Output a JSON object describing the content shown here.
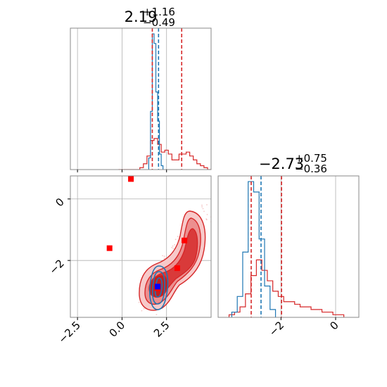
{
  "colors": {
    "red": "#d62728",
    "blue": "#1f77b4",
    "marker_red": "#ff0000",
    "marker_blue": "#0000ff",
    "fill_light": "#f7c9c9",
    "fill_mid": "#ec8f8f",
    "fill_dark": "#d93a3a",
    "grid": "#b0b0b0",
    "axis": "#888888"
  },
  "chart_data": [
    {
      "type": "histogram",
      "panel": "top-left",
      "title_value": "2.19",
      "title_plus": "+1.16",
      "title_minus": "−0.49",
      "grid": true,
      "xlim": [
        -2.9,
        5.0
      ],
      "quantile_lines": {
        "red": [
          1.7,
          3.35
        ],
        "blue": [
          2.05
        ]
      },
      "series": [
        {
          "color": "red",
          "bins": [
            -0.2,
            0.0,
            0.2,
            0.4,
            0.6,
            0.8,
            1.0,
            1.2,
            1.4,
            1.6,
            1.8,
            2.0,
            2.2,
            2.4,
            2.6,
            2.8,
            3.0,
            3.2,
            3.4,
            3.6,
            3.8,
            4.0,
            4.2,
            4.4,
            4.6,
            4.8,
            5.0
          ],
          "counts": [
            0,
            0,
            0,
            0,
            0,
            0,
            1,
            3,
            7,
            15,
            16,
            13,
            9,
            10,
            8,
            5,
            5,
            8,
            8,
            9,
            7,
            5,
            3,
            2,
            1,
            0
          ]
        },
        {
          "color": "blue",
          "bins": [
            1.5,
            1.6,
            1.7,
            1.8,
            1.9,
            2.0,
            2.1,
            2.2,
            2.3
          ],
          "counts": [
            6,
            30,
            70,
            65,
            40,
            25,
            8,
            2
          ]
        }
      ]
    },
    {
      "type": "contour",
      "panel": "bottom-left",
      "grid": true,
      "xlim": [
        -2.9,
        5.0
      ],
      "ylim": [
        -3.85,
        0.75
      ],
      "xticks": [
        -2.5,
        0.0,
        2.5
      ],
      "xtick_labels": [
        "−2.5",
        "0.0",
        "2.5"
      ],
      "yticks": [
        0,
        -2
      ],
      "ytick_labels": [
        "0",
        "−2"
      ],
      "red_markers": [
        {
          "x": 0.5,
          "y": 0.65
        },
        {
          "x": -0.7,
          "y": -1.6
        },
        {
          "x": 3.5,
          "y": -1.35
        },
        {
          "x": 3.1,
          "y": -2.25
        },
        {
          "x": 2.0,
          "y": -2.9
        }
      ],
      "blue_markers": [
        {
          "x": 2.0,
          "y": -2.85
        }
      ]
    },
    {
      "type": "histogram",
      "panel": "bottom-right",
      "title_value": "−2.73",
      "title_plus": "+0.75",
      "title_minus": "−0.36",
      "grid": true,
      "xlim": [
        -4.3,
        0.85
      ],
      "xticks": [
        -2,
        0
      ],
      "xtick_labels": [
        "−2",
        "0"
      ],
      "quantile_lines": {
        "red": [
          -3.09,
          -1.98
        ],
        "blue": [
          -2.73
        ]
      },
      "series": [
        {
          "color": "red",
          "bins": [
            -3.9,
            -3.7,
            -3.5,
            -3.3,
            -3.1,
            -2.9,
            -2.7,
            -2.5,
            -2.3,
            -2.1,
            -1.9,
            -1.7,
            -1.5,
            -1.3,
            -1.1,
            -0.9,
            -0.7,
            -0.5,
            -0.3,
            -0.1,
            0.1,
            0.3
          ],
          "counts": [
            1,
            2,
            4,
            9,
            16,
            22,
            18,
            14,
            10,
            8,
            6,
            6,
            5,
            4,
            4,
            3,
            3,
            2,
            2,
            1,
            1
          ]
        },
        {
          "color": "blue",
          "bins": [
            -3.8,
            -3.6,
            -3.4,
            -3.2,
            -3.0,
            -2.8,
            -2.6,
            -2.4,
            -2.2
          ],
          "counts": [
            2,
            8,
            25,
            52,
            48,
            30,
            12,
            3
          ]
        }
      ]
    }
  ]
}
